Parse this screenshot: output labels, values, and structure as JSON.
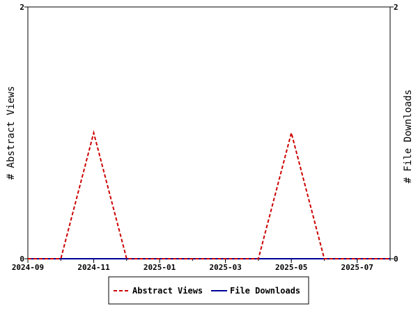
{
  "chart_data": {
    "type": "line",
    "x": [
      "2024-10",
      "2024-11",
      "2024-12",
      "2025-01",
      "2025-02",
      "2025-03",
      "2025-04",
      "2025-05",
      "2025-06",
      "2025-07",
      "2025-08"
    ],
    "series": [
      {
        "name": "Abstract Views",
        "axis": "left",
        "color": "#cc0000",
        "style": "dashed",
        "values": [
          0,
          1,
          0,
          0,
          0,
          0,
          0,
          1,
          0,
          0,
          0
        ]
      },
      {
        "name": "File Downloads",
        "axis": "right",
        "color": "#000099",
        "style": "solid",
        "values": [
          0,
          0,
          0,
          0,
          0,
          0,
          0,
          0,
          0,
          0,
          0
        ]
      }
    ],
    "xticks": [
      "2024-09",
      "2024-11",
      "2025-01",
      "2025-03",
      "2025-05",
      "2025-07"
    ],
    "xlim": [
      "2024-09",
      "2025-08"
    ],
    "ylabel_left": "# Abstract Views",
    "ylabel_right": "# File Downloads",
    "ylim_left": [
      0,
      2
    ],
    "ylim_right": [
      0,
      2
    ],
    "yticks_left": [
      0,
      2
    ],
    "yticks_right": [
      0,
      2
    ],
    "grid": false,
    "legend": "bottom-center"
  }
}
